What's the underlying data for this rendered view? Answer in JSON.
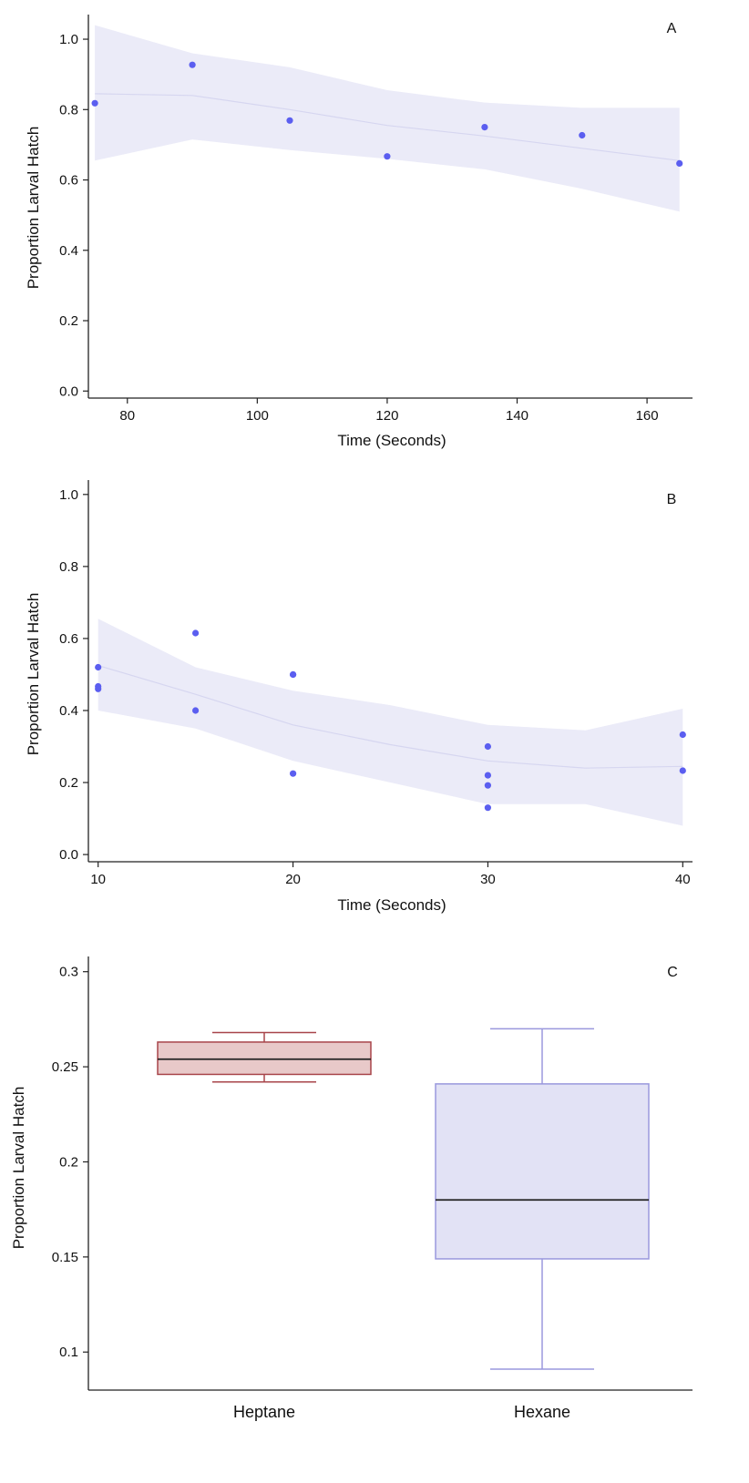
{
  "chart_data": [
    {
      "type": "scatter",
      "panel": "A",
      "xlabel": "Time (Seconds)",
      "ylabel": "Proportion Larval Hatch",
      "xlim": [
        74,
        167
      ],
      "ylim": [
        -0.02,
        1.07
      ],
      "xticks": [
        80,
        100,
        120,
        140,
        160
      ],
      "yticks": [
        "0.0",
        "0.2",
        "0.4",
        "0.6",
        "0.8",
        "1.0"
      ],
      "points": [
        {
          "x": 75,
          "y": 0.818
        },
        {
          "x": 90,
          "y": 0.927
        },
        {
          "x": 105,
          "y": 0.769
        },
        {
          "x": 120,
          "y": 0.667
        },
        {
          "x": 135,
          "y": 0.75
        },
        {
          "x": 150,
          "y": 0.727
        },
        {
          "x": 165,
          "y": 0.647
        }
      ],
      "fit": {
        "x": [
          75,
          90,
          105,
          120,
          135,
          150,
          165
        ],
        "y": [
          0.845,
          0.84,
          0.8,
          0.755,
          0.725,
          0.69,
          0.655
        ],
        "lower": [
          0.655,
          0.715,
          0.685,
          0.66,
          0.63,
          0.575,
          0.51
        ],
        "upper": [
          1.04,
          0.96,
          0.92,
          0.855,
          0.82,
          0.805,
          0.805
        ]
      },
      "colors": {
        "points": "#5b5ef0",
        "band": "#ebebf8",
        "line": "#d6d6f0"
      }
    },
    {
      "type": "scatter",
      "panel": "B",
      "xlabel": "Time (Seconds)",
      "ylabel": "Proportion Larval Hatch",
      "xlim": [
        9.5,
        40.5
      ],
      "ylim": [
        -0.02,
        1.04
      ],
      "xticks": [
        10,
        20,
        30,
        40
      ],
      "yticks": [
        "0.0",
        "0.2",
        "0.4",
        "0.6",
        "0.8",
        "1.0"
      ],
      "points": [
        {
          "x": 10,
          "y": 0.52
        },
        {
          "x": 10,
          "y": 0.467
        },
        {
          "x": 10,
          "y": 0.46
        },
        {
          "x": 15,
          "y": 0.615
        },
        {
          "x": 15,
          "y": 0.4
        },
        {
          "x": 20,
          "y": 0.5
        },
        {
          "x": 20,
          "y": 0.5
        },
        {
          "x": 20,
          "y": 0.225
        },
        {
          "x": 30,
          "y": 0.3
        },
        {
          "x": 30,
          "y": 0.22
        },
        {
          "x": 30,
          "y": 0.192
        },
        {
          "x": 30,
          "y": 0.13
        },
        {
          "x": 40,
          "y": 0.333
        },
        {
          "x": 40,
          "y": 0.233
        }
      ],
      "fit": {
        "x": [
          10,
          15,
          20,
          25,
          30,
          35,
          40
        ],
        "y": [
          0.525,
          0.445,
          0.36,
          0.305,
          0.26,
          0.24,
          0.245
        ],
        "lower": [
          0.4,
          0.35,
          0.26,
          0.2,
          0.14,
          0.14,
          0.08
        ],
        "upper": [
          0.655,
          0.52,
          0.455,
          0.415,
          0.36,
          0.345,
          0.405
        ]
      },
      "colors": {
        "points": "#5b5ef0",
        "band": "#ebebf8",
        "line": "#d6d6f0"
      }
    },
    {
      "type": "box",
      "panel": "C",
      "xlabel": "",
      "ylabel": "Proportion Larval Hatch",
      "ylim": [
        0.08,
        0.308
      ],
      "yticks": [
        "0.1",
        "0.15",
        "0.2",
        "0.25",
        "0.3"
      ],
      "categories": [
        "Heptane",
        "Hexane"
      ],
      "boxes": [
        {
          "name": "Heptane",
          "min": 0.242,
          "q1": 0.246,
          "median": 0.254,
          "q3": 0.263,
          "max": 0.268,
          "fill": "#e8c9c9",
          "stroke": "#a8454a"
        },
        {
          "name": "Hexane",
          "min": 0.091,
          "q1": 0.149,
          "median": 0.18,
          "q3": 0.241,
          "max": 0.27,
          "fill": "#e2e2f5",
          "stroke": "#9a98dd"
        }
      ]
    }
  ]
}
